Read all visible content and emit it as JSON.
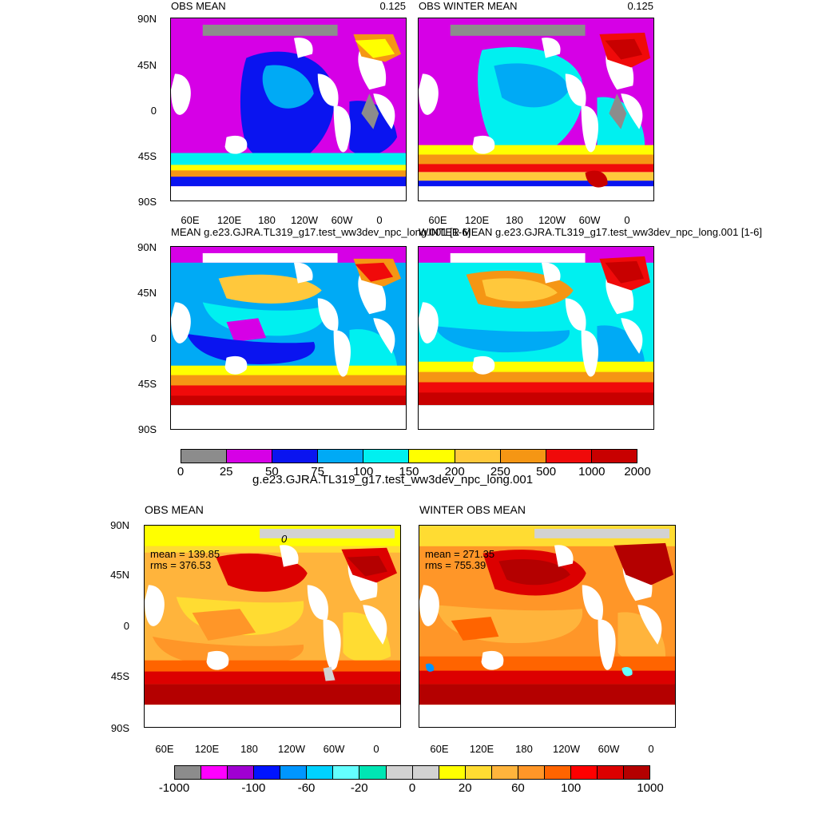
{
  "row1": {
    "left": {
      "title": "OBS MEAN",
      "scale": "0.125"
    },
    "right": {
      "title": "OBS WINTER MEAN",
      "scale": "0.125"
    }
  },
  "row2": {
    "left": {
      "title": "MEAN g.e23.GJRA.TL319_g17.test_ww3dev_npc_long.001 [1-6]"
    },
    "right": {
      "title": "WINTER MEAN g.e23.GJRA.TL319_g17.test_ww3dev_npc_long.001 [1-6]"
    }
  },
  "top_colorbar": {
    "colors": [
      "#8c8c8c",
      "#d600e6",
      "#0a14f0",
      "#00aaf5",
      "#00f0f0",
      "#ffff00",
      "#ffc83c",
      "#f59614",
      "#f00a0a",
      "#c80000"
    ],
    "labels": [
      "0",
      "25",
      "50",
      "75",
      "100",
      "150",
      "200",
      "250",
      "500",
      "1000",
      "2000"
    ],
    "title": "g.e23.GJRA.TL319_g17.test_ww3dev_npc_long.001"
  },
  "row3": {
    "left": {
      "title": "OBS MEAN",
      "mean": "mean = 139.85",
      "rms": "rms = 376.53",
      "contour": "0"
    },
    "right": {
      "title": "WINTER OBS MEAN",
      "mean": "mean = 271.35",
      "rms": "rms = 755.39"
    }
  },
  "bottom_colorbar": {
    "colors": [
      "#8c8c8c",
      "#ff00ff",
      "#a000d2",
      "#0014ff",
      "#0096ff",
      "#00d2ff",
      "#64ffff",
      "#00e6b4",
      "#d2d2d2",
      "#d2d2d2",
      "#ffff00",
      "#ffdc32",
      "#ffb43c",
      "#ff9628",
      "#ff6400",
      "#ff0000",
      "#dc0000",
      "#b40000"
    ],
    "labels": [
      "-1000",
      "-100",
      "-60",
      "-20",
      "0",
      "20",
      "60",
      "100",
      "1000"
    ]
  },
  "axes": {
    "lat_labels": [
      "90N",
      "45N",
      "0",
      "45S",
      "90S"
    ],
    "lon_labels": [
      "60E",
      "120E",
      "180",
      "120W",
      "60W",
      "0"
    ]
  },
  "map_colors": {
    "land": "#ffffff",
    "sea_ice": "#8c8c8c"
  }
}
